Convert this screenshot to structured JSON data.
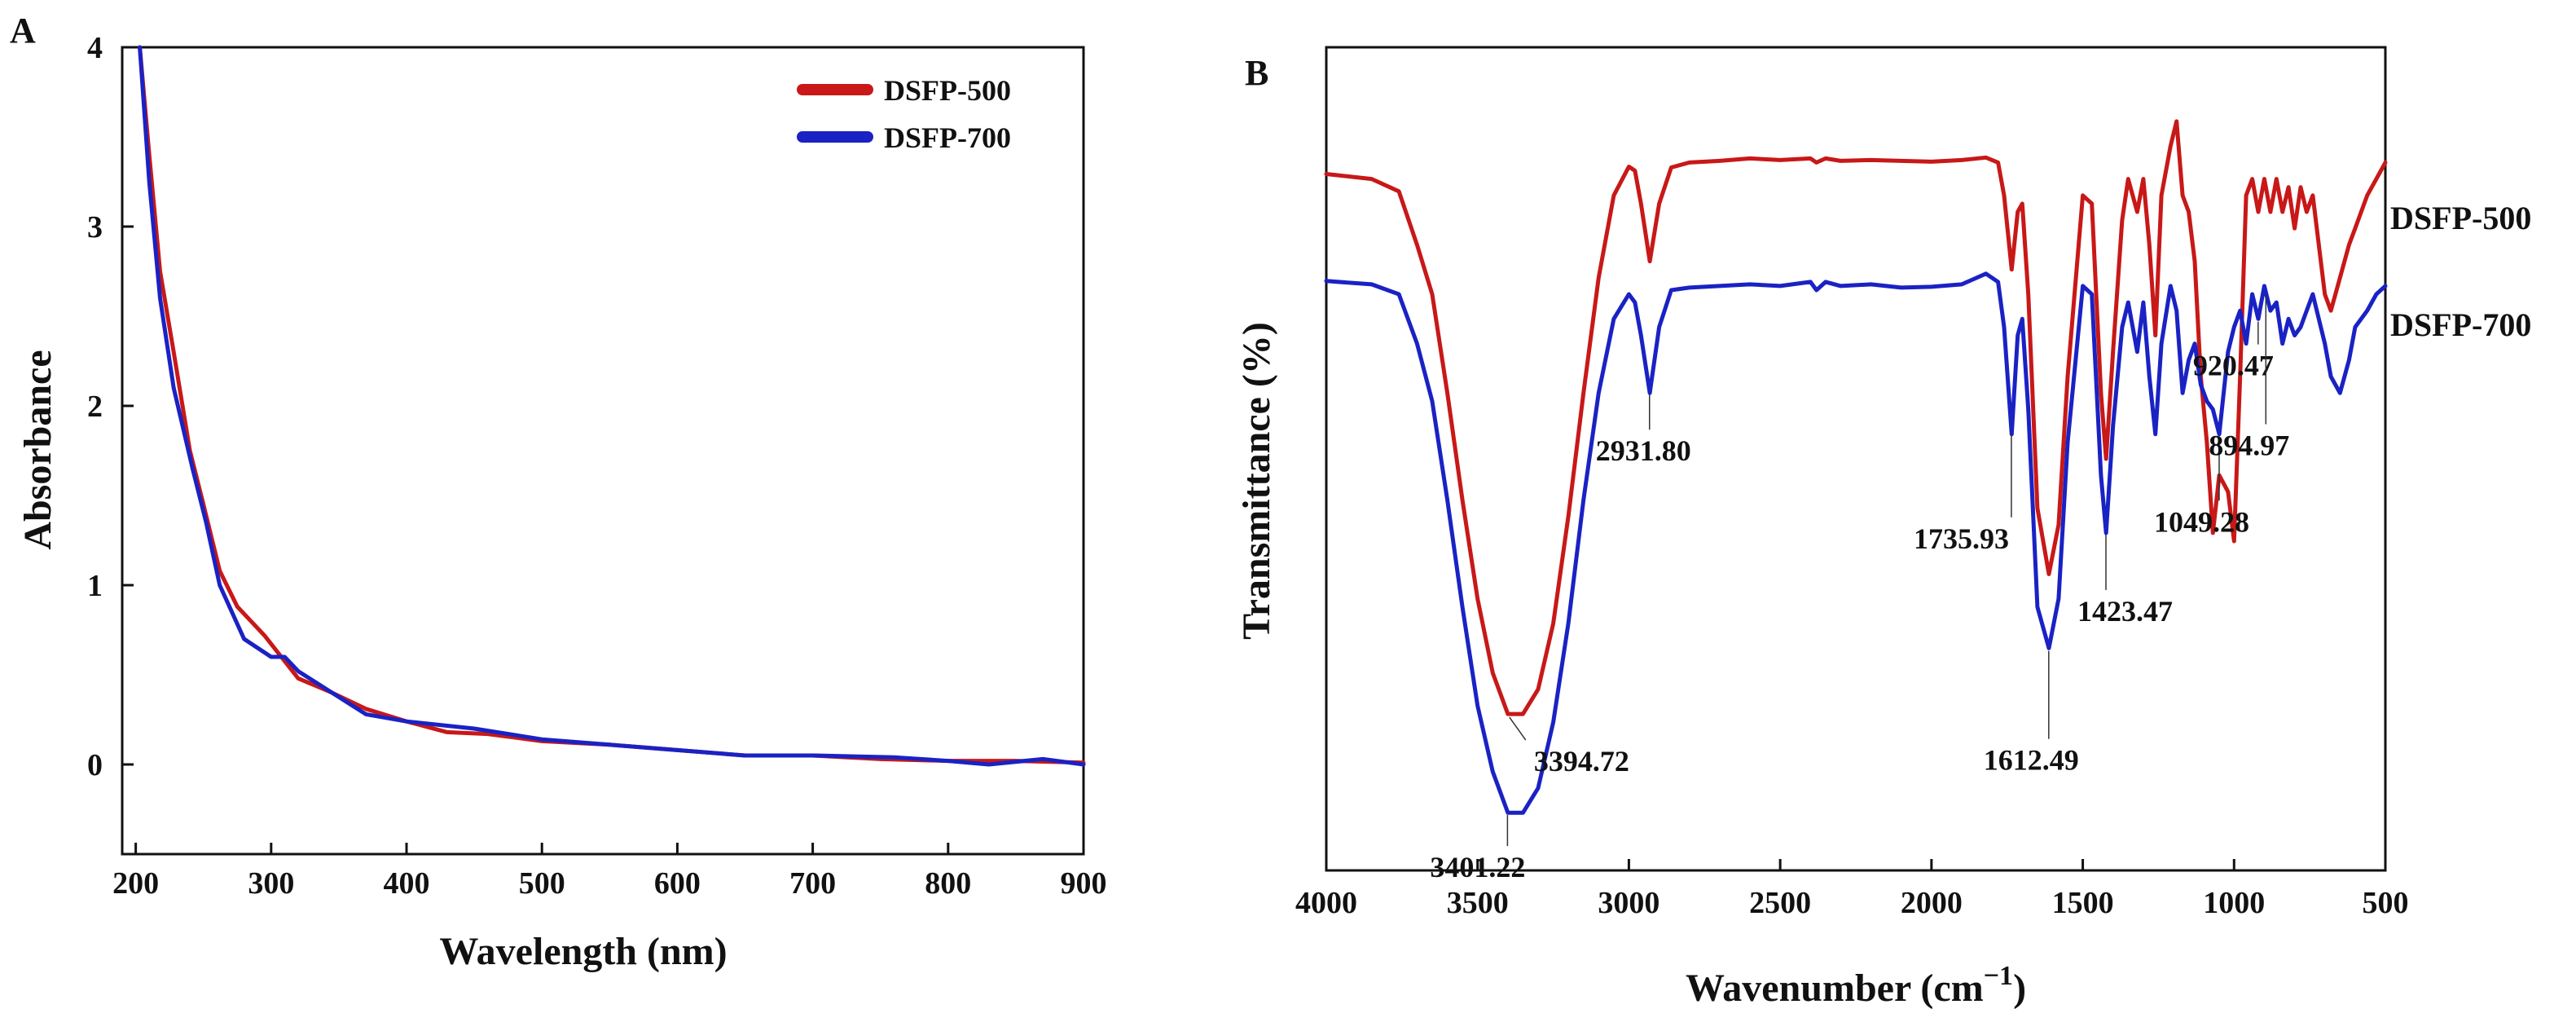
{
  "colors": {
    "red": "#c81818",
    "blue": "#1a22c4",
    "axis": "#111111"
  },
  "chart_data": [
    {
      "panel": "A",
      "type": "line",
      "title": "",
      "xlabel": "Wavelength (nm)",
      "ylabel": "Absorbance",
      "xlim": [
        190,
        900
      ],
      "ylim": [
        -0.5,
        4
      ],
      "xticks": [
        200,
        300,
        400,
        500,
        600,
        700,
        800,
        900
      ],
      "yticks": [
        0,
        1,
        2,
        3,
        4
      ],
      "legend_position": "top-right",
      "series": [
        {
          "name": "DSFP-500",
          "color": "#c81818",
          "x": [
            203,
            210,
            218,
            228,
            240,
            250,
            262,
            275,
            295,
            320,
            345,
            370,
            400,
            430,
            460,
            500,
            550,
            600,
            650,
            700,
            750,
            800,
            850,
            900
          ],
          "y": [
            4.0,
            3.4,
            2.75,
            2.3,
            1.75,
            1.45,
            1.08,
            0.88,
            0.72,
            0.48,
            0.4,
            0.31,
            0.24,
            0.18,
            0.17,
            0.13,
            0.11,
            0.08,
            0.05,
            0.05,
            0.03,
            0.02,
            0.02,
            0.01
          ]
        },
        {
          "name": "DSFP-700",
          "color": "#1a22c4",
          "x": [
            203,
            210,
            218,
            228,
            242,
            252,
            262,
            280,
            300,
            310,
            320,
            345,
            370,
            400,
            450,
            500,
            550,
            600,
            650,
            700,
            760,
            800,
            830,
            870,
            900
          ],
          "y": [
            4.0,
            3.25,
            2.6,
            2.1,
            1.65,
            1.35,
            1.0,
            0.7,
            0.6,
            0.6,
            0.52,
            0.4,
            0.28,
            0.24,
            0.2,
            0.14,
            0.11,
            0.08,
            0.05,
            0.05,
            0.04,
            0.02,
            0.0,
            0.03,
            0.0
          ]
        }
      ]
    },
    {
      "panel": "B",
      "type": "line",
      "title": "",
      "xlabel": "Wavenumber (cm",
      "xlabel_superscript": "−1",
      "xlabel_end": ")",
      "ylabel": "Transmittance (%)",
      "xlim": [
        4000,
        500
      ],
      "xticks": [
        4000,
        3500,
        3000,
        2500,
        2000,
        1500,
        1000,
        500
      ],
      "ylim": [
        0,
        100
      ],
      "series": [
        {
          "name": "DSFP-500",
          "color": "#c81818",
          "x": [
            4000,
            3850,
            3760,
            3700,
            3650,
            3600,
            3550,
            3500,
            3450,
            3400,
            3350,
            3300,
            3250,
            3200,
            3150,
            3100,
            3050,
            3000,
            2980,
            2960,
            2931,
            2900,
            2860,
            2800,
            2700,
            2600,
            2500,
            2400,
            2380,
            2350,
            2300,
            2200,
            2100,
            2000,
            1900,
            1820,
            1780,
            1760,
            1735,
            1715,
            1700,
            1680,
            1650,
            1612,
            1580,
            1550,
            1500,
            1470,
            1440,
            1423,
            1400,
            1370,
            1350,
            1320,
            1300,
            1280,
            1260,
            1240,
            1210,
            1190,
            1170,
            1150,
            1130,
            1110,
            1090,
            1070,
            1049,
            1020,
            1000,
            980,
            960,
            940,
            920,
            900,
            880,
            860,
            840,
            820,
            800,
            780,
            760,
            740,
            720,
            700,
            680,
            650,
            620,
            600,
            560,
            530,
            500
          ],
          "y": [
            84.6,
            84.0,
            82.5,
            76,
            70,
            58,
            45,
            33,
            24,
            19,
            19,
            22,
            30,
            43,
            58,
            72,
            82,
            85.5,
            85,
            81,
            74,
            81,
            85.4,
            86.0,
            86.2,
            86.5,
            86.3,
            86.5,
            86,
            86.5,
            86.2,
            86.3,
            86.2,
            86.1,
            86.3,
            86.6,
            86,
            82,
            73,
            80,
            81,
            70,
            44,
            36,
            42,
            60,
            82,
            81,
            58,
            50,
            63,
            79,
            84,
            80,
            84,
            76,
            65,
            82,
            88,
            91,
            82,
            80,
            74,
            60,
            52,
            41,
            48,
            46,
            40,
            60,
            82,
            84,
            80,
            84,
            80,
            84,
            80,
            83,
            78,
            83,
            80,
            82,
            76,
            70,
            68,
            72,
            76,
            78,
            82,
            84,
            86
          ]
        },
        {
          "name": "DSFP-700",
          "color": "#1a22c4",
          "x": [
            4000,
            3850,
            3760,
            3700,
            3650,
            3600,
            3550,
            3500,
            3450,
            3400,
            3350,
            3300,
            3250,
            3200,
            3150,
            3100,
            3050,
            3000,
            2980,
            2960,
            2931,
            2900,
            2860,
            2800,
            2700,
            2600,
            2500,
            2400,
            2380,
            2350,
            2300,
            2200,
            2100,
            2000,
            1900,
            1820,
            1780,
            1760,
            1735,
            1715,
            1700,
            1680,
            1650,
            1612,
            1580,
            1550,
            1500,
            1470,
            1440,
            1423,
            1400,
            1370,
            1350,
            1320,
            1300,
            1280,
            1260,
            1240,
            1210,
            1190,
            1170,
            1150,
            1130,
            1110,
            1090,
            1070,
            1049,
            1020,
            1000,
            980,
            960,
            940,
            920,
            900,
            880,
            860,
            840,
            820,
            800,
            780,
            760,
            740,
            720,
            700,
            680,
            650,
            620,
            600,
            560,
            530,
            500
          ],
          "y": [
            71.6,
            71.2,
            70,
            64,
            57,
            45,
            32,
            20,
            12,
            7,
            7,
            10,
            18,
            30,
            45,
            58,
            67,
            70,
            69,
            65,
            58,
            66,
            70.5,
            70.8,
            71,
            71.2,
            71,
            71.5,
            70.5,
            71.5,
            71,
            71.2,
            70.8,
            70.9,
            71.2,
            72.5,
            71.5,
            66,
            53,
            65,
            67,
            56,
            32,
            27,
            33,
            52,
            71,
            70,
            48,
            41,
            54,
            66,
            69,
            63,
            69,
            60,
            53,
            64,
            71,
            68,
            58,
            62,
            64,
            59,
            57,
            56,
            53,
            63,
            66,
            68,
            64,
            70,
            67,
            71,
            68,
            69,
            64,
            67,
            65,
            66,
            68,
            70,
            67,
            64,
            60,
            58,
            62,
            66,
            68,
            70,
            71
          ]
        }
      ],
      "series_labels": [
        "DSFP-500",
        "DSFP-700"
      ],
      "annotations": [
        {
          "text": "2931.80",
          "x": 2931.8,
          "series": 1
        },
        {
          "text": "3394.72",
          "x": 3394.72,
          "series": 0
        },
        {
          "text": "3401.22",
          "x": 3401.22,
          "series": 1
        },
        {
          "text": "1735.93",
          "x": 1735.93,
          "series": 1
        },
        {
          "text": "1612.49",
          "x": 1612.49,
          "series": 1
        },
        {
          "text": "1423.47",
          "x": 1423.47,
          "series": 1
        },
        {
          "text": "1049.28",
          "x": 1049.28,
          "series": 1
        },
        {
          "text": "920.47",
          "x": 920.47,
          "series": 1
        },
        {
          "text": "894.97",
          "x": 894.97,
          "series": 1
        }
      ]
    }
  ]
}
